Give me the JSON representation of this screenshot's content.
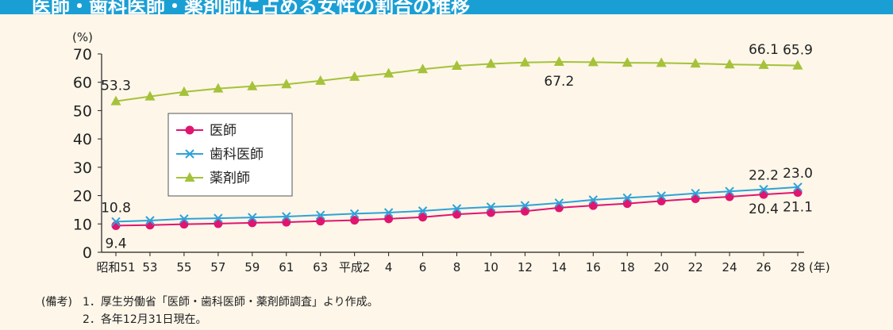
{
  "header": {
    "title": "医師・歯科医師・薬剤師に占める女性の割合の推移"
  },
  "chart_data": {
    "type": "line",
    "ylabel": "(%)",
    "xunit": "(年)",
    "ylim": [
      0,
      70
    ],
    "yticks": [
      0,
      10,
      20,
      30,
      40,
      50,
      60,
      70
    ],
    "categories": [
      "昭和51",
      "53",
      "55",
      "57",
      "59",
      "61",
      "63",
      "平成2",
      "4",
      "6",
      "8",
      "10",
      "12",
      "14",
      "16",
      "18",
      "20",
      "22",
      "24",
      "26",
      "28"
    ],
    "legend_position": "left-center",
    "series": [
      {
        "name": "医師",
        "color": "#e0156f",
        "marker": "circle",
        "values": [
          9.4,
          9.6,
          9.9,
          10.1,
          10.4,
          10.6,
          11.0,
          11.3,
          11.8,
          12.4,
          13.4,
          14.0,
          14.5,
          15.7,
          16.5,
          17.2,
          18.1,
          18.9,
          19.6,
          20.4,
          21.1
        ],
        "labels": [
          {
            "index": 0,
            "text": "9.4"
          },
          {
            "index": 19,
            "text": "20.4"
          },
          {
            "index": 20,
            "text": "21.1"
          }
        ]
      },
      {
        "name": "歯科医師",
        "color": "#2fa2d8",
        "marker": "x",
        "values": [
          10.8,
          11.2,
          11.8,
          12.0,
          12.3,
          12.6,
          13.1,
          13.6,
          14.0,
          14.6,
          15.4,
          16.0,
          16.5,
          17.4,
          18.5,
          19.2,
          19.9,
          20.8,
          21.5,
          22.2,
          23.0
        ],
        "labels": [
          {
            "index": 0,
            "text": "10.8"
          },
          {
            "index": 19,
            "text": "22.2"
          },
          {
            "index": 20,
            "text": "23.0"
          }
        ]
      },
      {
        "name": "薬剤師",
        "color": "#a5c23a",
        "marker": "triangle",
        "values": [
          53.3,
          55.0,
          56.6,
          57.8,
          58.6,
          59.3,
          60.5,
          61.9,
          63.1,
          64.6,
          65.8,
          66.5,
          67.0,
          67.2,
          67.1,
          66.9,
          66.8,
          66.6,
          66.3,
          66.1,
          65.9
        ],
        "labels": [
          {
            "index": 0,
            "text": "53.3"
          },
          {
            "index": 13,
            "text": "67.2"
          },
          {
            "index": 19,
            "text": "66.1"
          },
          {
            "index": 20,
            "text": "65.9"
          }
        ]
      }
    ]
  },
  "notes": {
    "label": "(備考)",
    "items": [
      "1．厚生労働省「医師・歯科医師・薬剤師調査」より作成。",
      "2．各年12月31日現在。"
    ]
  }
}
